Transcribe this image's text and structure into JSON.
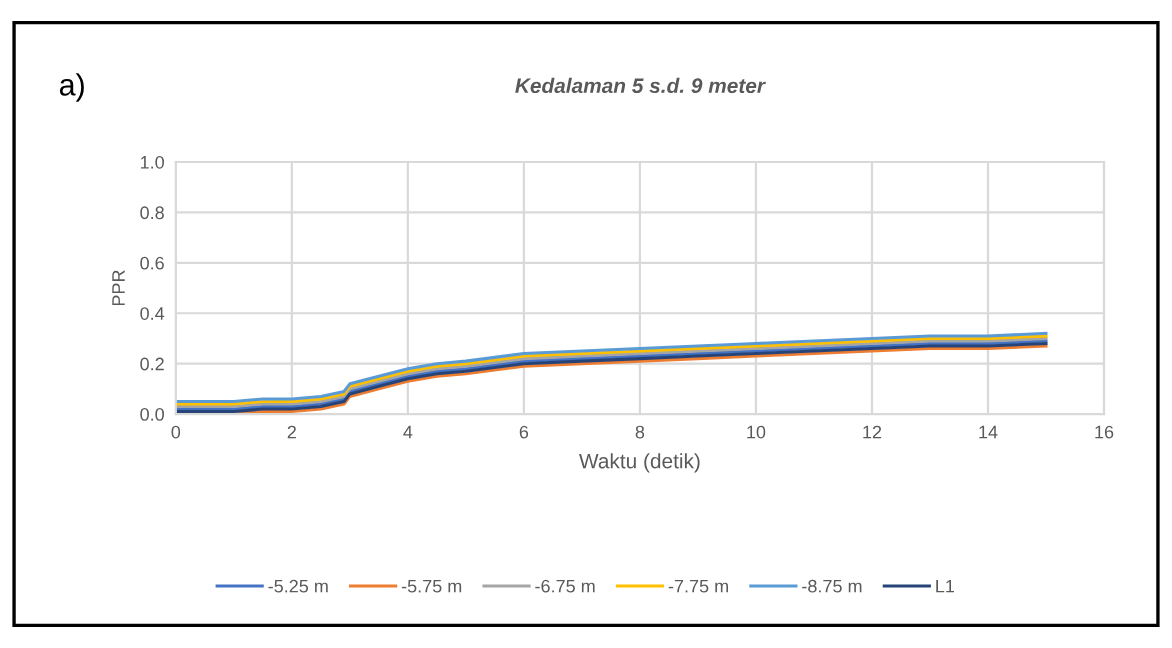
{
  "chart_data": {
    "type": "line",
    "title": "Kedalaman 5 s.d. 9 meter",
    "xlabel": "Waktu (detik)",
    "ylabel": "PPR",
    "annotations": [
      "a)"
    ],
    "x": [
      0,
      0.5,
      1,
      1.5,
      2,
      2.5,
      2.9,
      3,
      3.5,
      4,
      4.5,
      5,
      6,
      7,
      8,
      9,
      10,
      11,
      12,
      13,
      14,
      15
    ],
    "series": [
      {
        "name": "-5.25 m",
        "color": "#4472c4",
        "values": [
          0.02,
          0.02,
          0.02,
          0.03,
          0.03,
          0.04,
          0.06,
          0.09,
          0.12,
          0.15,
          0.17,
          0.18,
          0.21,
          0.22,
          0.23,
          0.24,
          0.25,
          0.26,
          0.27,
          0.28,
          0.28,
          0.29
        ]
      },
      {
        "name": "-5.75 m",
        "color": "#ed7d31",
        "values": [
          0,
          0,
          0,
          0.01,
          0.01,
          0.02,
          0.04,
          0.07,
          0.1,
          0.13,
          0.15,
          0.16,
          0.19,
          0.2,
          0.21,
          0.22,
          0.23,
          0.24,
          0.25,
          0.26,
          0.26,
          0.27
        ]
      },
      {
        "name": "-6.75 m",
        "color": "#a5a5a5",
        "values": [
          0.03,
          0.03,
          0.03,
          0.04,
          0.04,
          0.05,
          0.07,
          0.1,
          0.13,
          0.16,
          0.18,
          0.19,
          0.22,
          0.23,
          0.24,
          0.25,
          0.26,
          0.27,
          0.28,
          0.29,
          0.29,
          0.3
        ]
      },
      {
        "name": "-7.75 m",
        "color": "#ffc000",
        "values": [
          0.04,
          0.04,
          0.04,
          0.05,
          0.05,
          0.06,
          0.08,
          0.11,
          0.14,
          0.17,
          0.19,
          0.2,
          0.23,
          0.24,
          0.25,
          0.26,
          0.27,
          0.28,
          0.29,
          0.3,
          0.3,
          0.31
        ]
      },
      {
        "name": "-8.75 m",
        "color": "#5b9bd5",
        "values": [
          0.05,
          0.05,
          0.05,
          0.06,
          0.06,
          0.07,
          0.09,
          0.12,
          0.15,
          0.18,
          0.2,
          0.21,
          0.24,
          0.25,
          0.26,
          0.27,
          0.28,
          0.29,
          0.3,
          0.31,
          0.31,
          0.32
        ]
      },
      {
        "name": "L1",
        "color": "#264478",
        "values": [
          0.01,
          0.01,
          0.01,
          0.02,
          0.02,
          0.03,
          0.05,
          0.08,
          0.11,
          0.14,
          0.16,
          0.17,
          0.2,
          0.21,
          0.22,
          0.23,
          0.24,
          0.25,
          0.26,
          0.27,
          0.27,
          0.28
        ]
      }
    ],
    "xlim": [
      0,
      16
    ],
    "xticks": [
      0,
      2,
      4,
      6,
      8,
      10,
      12,
      14,
      16
    ],
    "ylim": [
      0,
      1.0
    ],
    "yticks": [
      {
        "value": 0,
        "label": "0.0"
      },
      {
        "value": 0.2,
        "label": "0.2"
      },
      {
        "value": 0.4,
        "label": "0.4"
      },
      {
        "value": 0.6,
        "label": "0.6"
      },
      {
        "value": 0.8,
        "label": "0.8"
      },
      {
        "value": 1.0,
        "label": "1.0"
      }
    ],
    "grid": true,
    "legend": "bottom",
    "line_style": "solid",
    "marker": "none"
  }
}
